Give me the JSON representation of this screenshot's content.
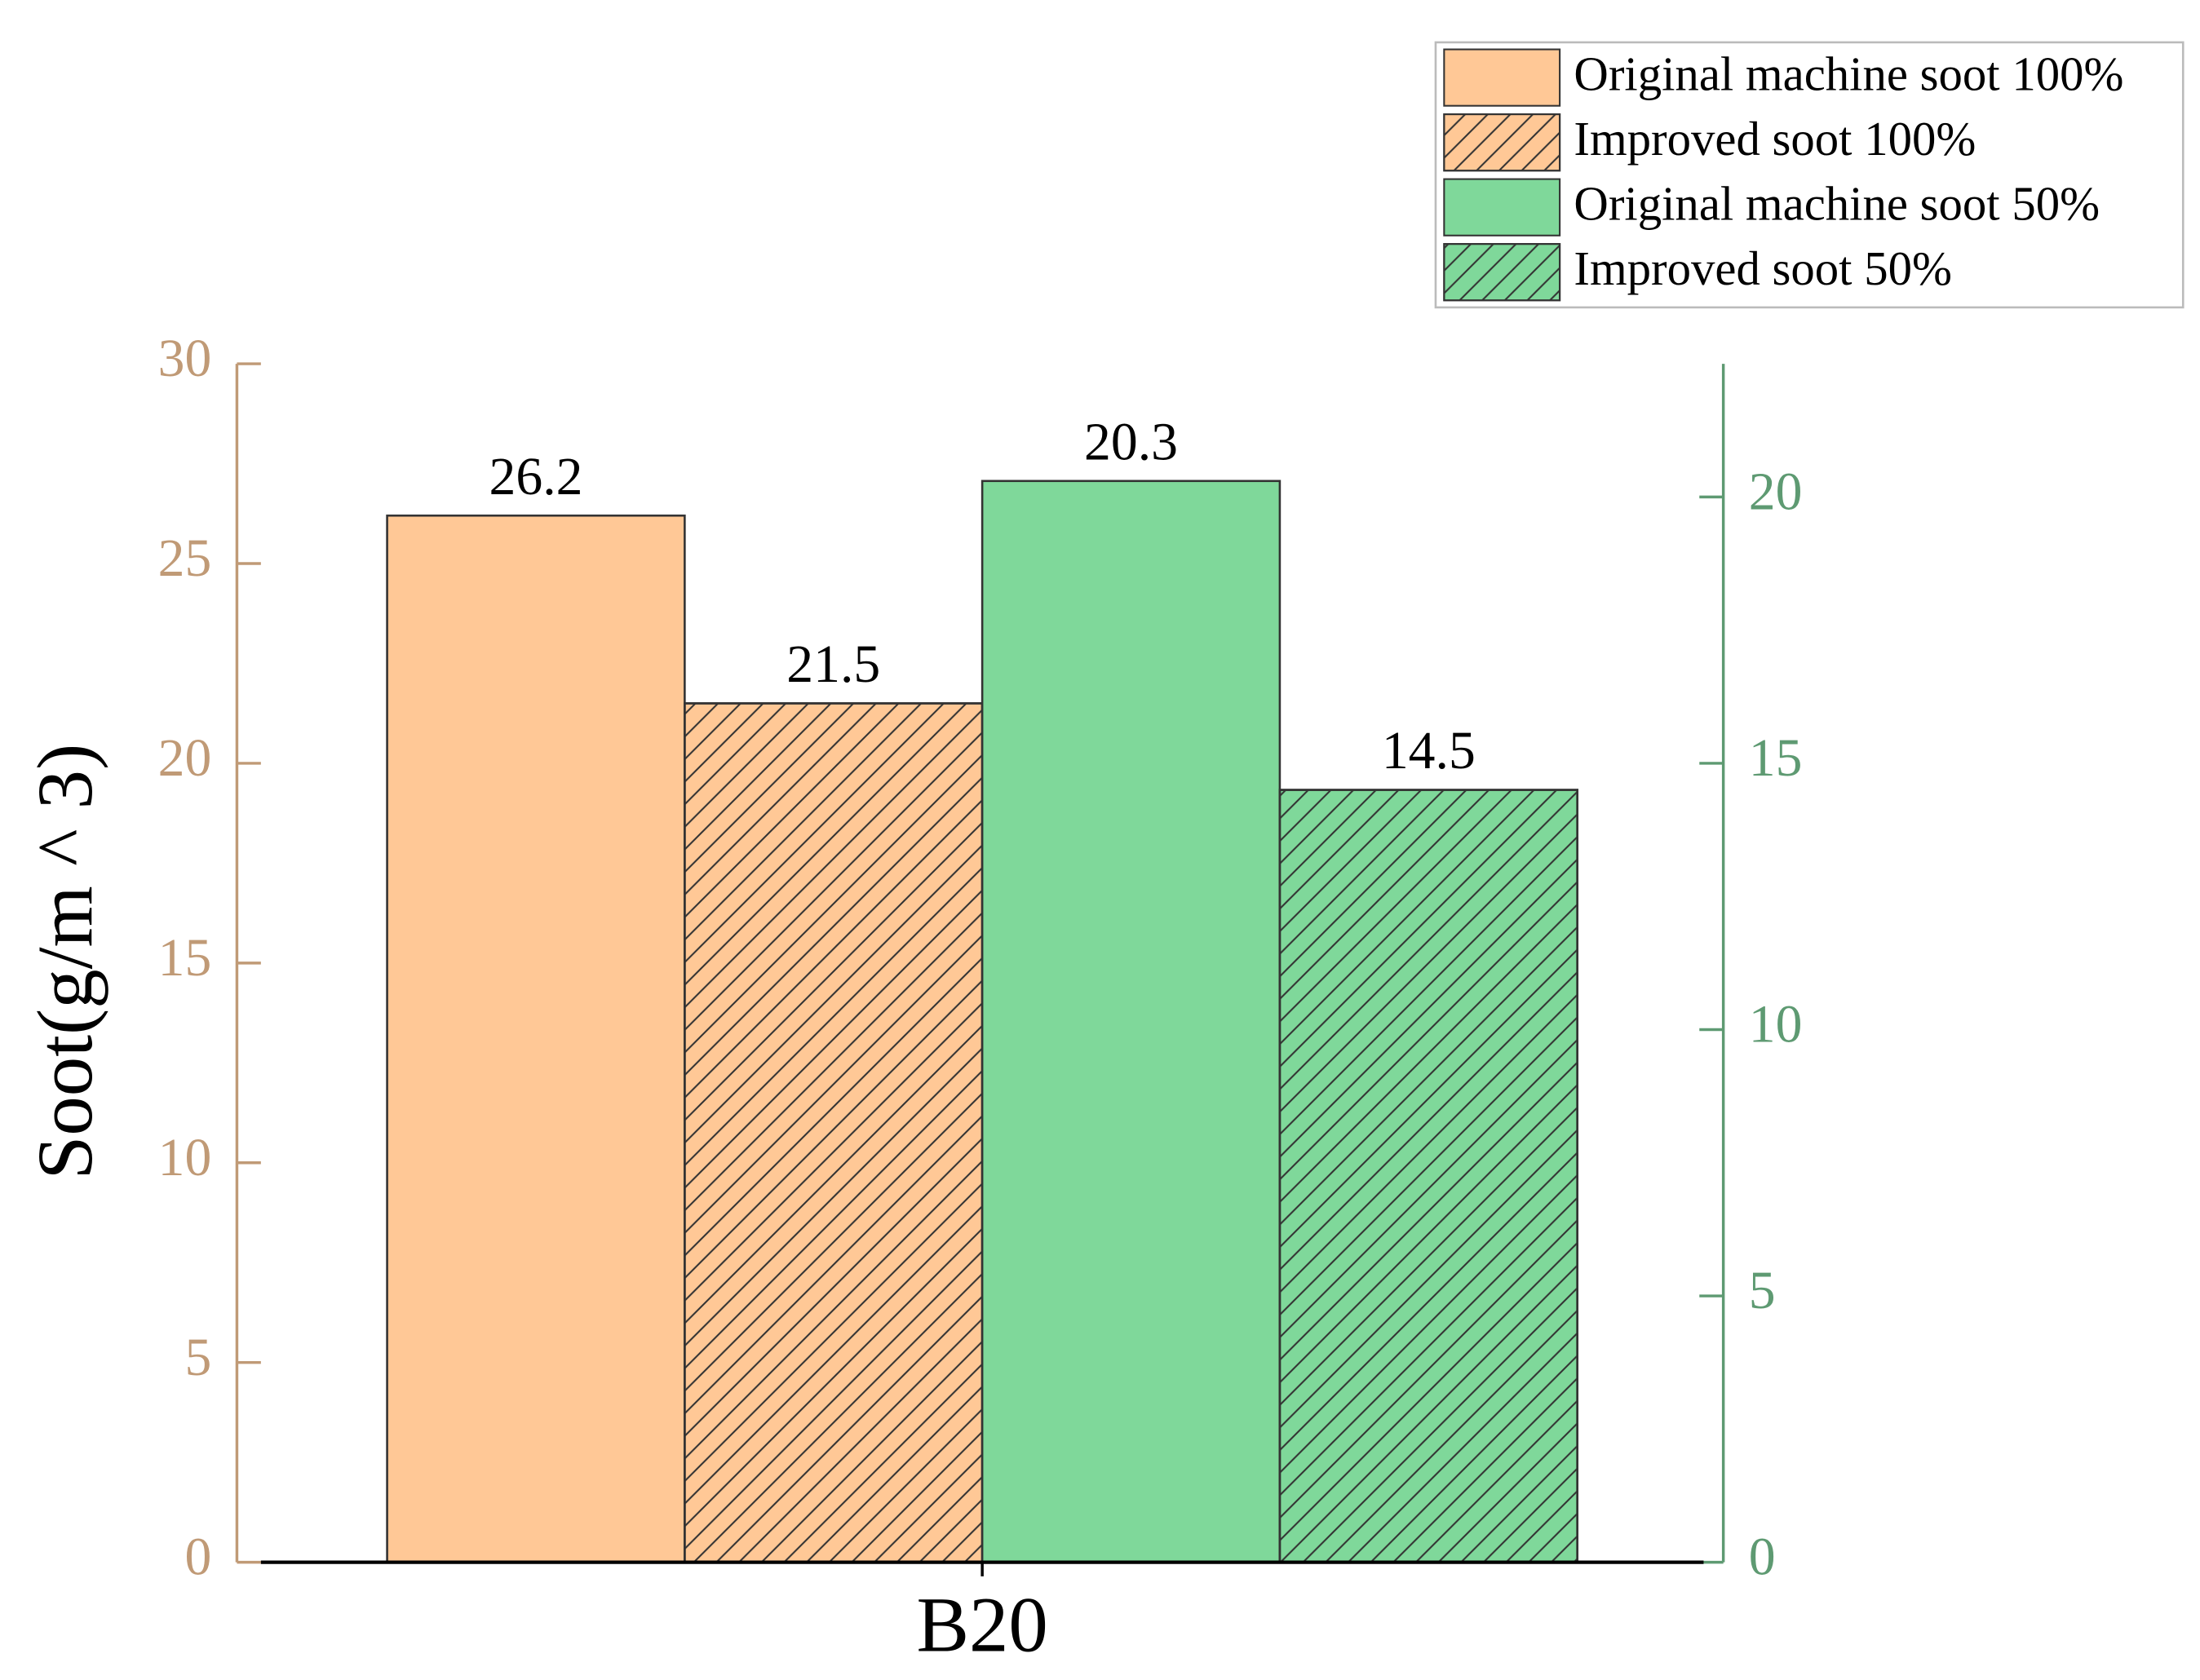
{
  "chart_data": {
    "type": "bar",
    "y_label": "Soot(g/m ^ 3)",
    "categories": [
      "B20"
    ],
    "series": [
      {
        "name": "Original machine soot 100%",
        "color": "#ffc896",
        "hatch": false,
        "axis": "y",
        "values": [
          26.2
        ]
      },
      {
        "name": "Improved soot 100%",
        "color": "#ffc896",
        "hatch": true,
        "axis": "y",
        "values": [
          21.5
        ]
      },
      {
        "name": "Original machine soot 50%",
        "color": "#7fd89a",
        "hatch": false,
        "axis": "y2",
        "values": [
          20.3
        ]
      },
      {
        "name": "Improved soot 50%",
        "color": "#7fd89a",
        "hatch": true,
        "axis": "y2",
        "values": [
          14.5
        ]
      }
    ],
    "ylim": [
      0,
      30
    ],
    "yticks": [
      0,
      5,
      10,
      15,
      20,
      25,
      30
    ],
    "y_color": "#c09a76",
    "y2lim": [
      0,
      22.5
    ],
    "y2ticks": [
      0,
      5,
      10,
      15,
      20
    ],
    "y2_color": "#5e9a72",
    "grid": false,
    "legend": "upper right"
  }
}
